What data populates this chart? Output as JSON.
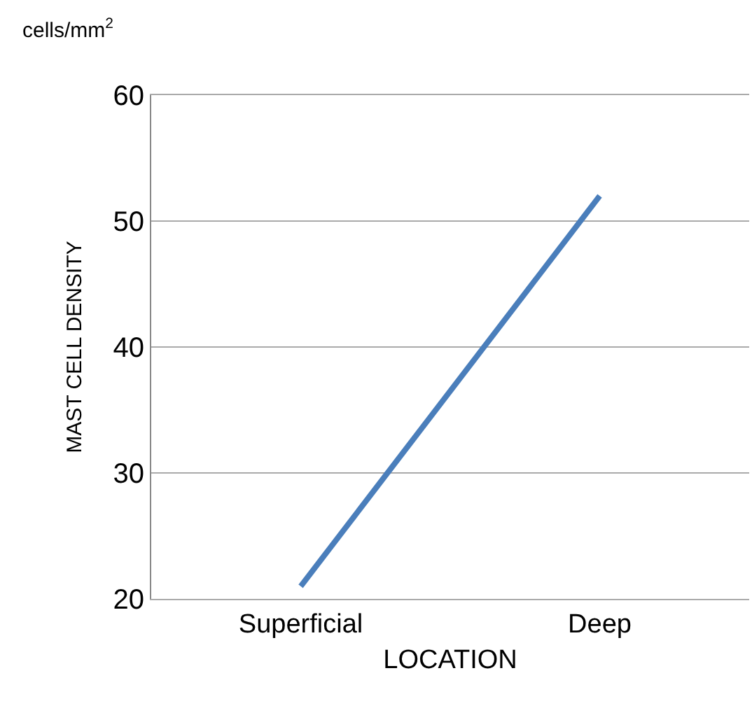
{
  "chart_data": {
    "type": "line",
    "categories": [
      "Superficial",
      "Deep"
    ],
    "series": [
      {
        "color": "#4a7ebb",
        "values": [
          21,
          52
        ]
      }
    ],
    "xlabel": "LOCATION",
    "ylabel": "MAST CELL DENSITY",
    "annotations": [
      "cells/mm$^{2}$"
    ],
    "ylim": [
      20,
      60
    ],
    "yticks": [
      20,
      30,
      40,
      50,
      60
    ],
    "grid": "y",
    "marker": "none",
    "line_style": "solid"
  }
}
